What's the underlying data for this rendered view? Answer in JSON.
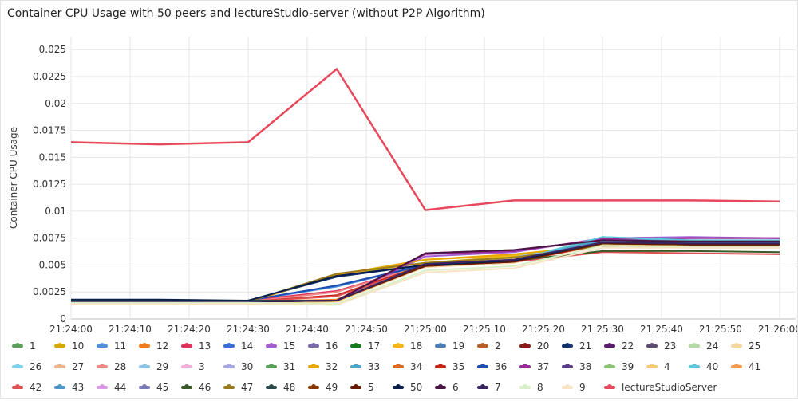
{
  "chart_data": {
    "type": "line",
    "title": "Container CPU Usage with 50 peers and lectureStudio-server (without P2P Algorithm)",
    "ylabel": "Container CPU Usage",
    "xlabel": "",
    "ylim": [
      0,
      0.0262
    ],
    "yticks": [
      "0",
      "0.0025",
      "0.005",
      "0.0075",
      "0.01",
      "0.0125",
      "0.015",
      "0.0175",
      "0.02",
      "0.0225",
      "0.025"
    ],
    "xticks": [
      "21:24:00",
      "21:24:10",
      "21:24:20",
      "21:24:30",
      "21:24:40",
      "21:24:50",
      "21:25:00",
      "21:25:10",
      "21:25:20",
      "21:25:30",
      "21:25:40",
      "21:25:50",
      "21:26:00"
    ],
    "x": [
      "21:24:00",
      "21:24:15",
      "21:24:30",
      "21:24:45",
      "21:25:00",
      "21:25:15",
      "21:25:30",
      "21:25:45",
      "21:26:00"
    ],
    "grid": true,
    "legend_position": "bottom",
    "series": [
      {
        "name": "1",
        "color": "#5aa05a",
        "values": [
          0.0016,
          0.0016,
          0.0016,
          0.0017,
          0.005,
          0.0054,
          0.007,
          0.0069,
          0.0069
        ]
      },
      {
        "name": "10",
        "color": "#d4aa00",
        "values": [
          0.0016,
          0.0016,
          0.0016,
          0.0041,
          0.0052,
          0.0058,
          0.0069,
          0.0068,
          0.0068
        ]
      },
      {
        "name": "11",
        "color": "#4f8fdc",
        "values": [
          0.0017,
          0.0017,
          0.0017,
          0.003,
          0.005,
          0.0054,
          0.0071,
          0.007,
          0.007
        ]
      },
      {
        "name": "12",
        "color": "#f07a1e",
        "values": [
          0.0016,
          0.0016,
          0.0016,
          0.0018,
          0.0052,
          0.0056,
          0.007,
          0.0069,
          0.0069
        ]
      },
      {
        "name": "13",
        "color": "#e0335b",
        "values": [
          0.0017,
          0.0017,
          0.0017,
          0.0026,
          0.005,
          0.0053,
          0.0069,
          0.0068,
          0.0068
        ]
      },
      {
        "name": "14",
        "color": "#3a6fd8",
        "values": [
          0.0017,
          0.0017,
          0.0017,
          0.0031,
          0.005,
          0.0054,
          0.0072,
          0.0071,
          0.0071
        ]
      },
      {
        "name": "15",
        "color": "#a25fd0",
        "values": [
          0.0016,
          0.0016,
          0.0016,
          0.0017,
          0.0058,
          0.0062,
          0.0075,
          0.0076,
          0.0075
        ]
      },
      {
        "name": "16",
        "color": "#7b6aa8",
        "values": [
          0.0016,
          0.0016,
          0.0016,
          0.0017,
          0.0051,
          0.0055,
          0.0071,
          0.007,
          0.007
        ]
      },
      {
        "name": "17",
        "color": "#137a1c",
        "values": [
          0.0016,
          0.0016,
          0.0016,
          0.0017,
          0.005,
          0.0053,
          0.0069,
          0.0068,
          0.0068
        ]
      },
      {
        "name": "18",
        "color": "#f4b817",
        "values": [
          0.0016,
          0.0016,
          0.0016,
          0.004,
          0.0055,
          0.0059,
          0.0068,
          0.0067,
          0.0067
        ]
      },
      {
        "name": "19",
        "color": "#4a7fb5",
        "values": [
          0.0016,
          0.0016,
          0.0016,
          0.0017,
          0.005,
          0.0054,
          0.0071,
          0.007,
          0.007
        ]
      },
      {
        "name": "2",
        "color": "#b5602a",
        "values": [
          0.0016,
          0.0016,
          0.0016,
          0.0017,
          0.0051,
          0.0055,
          0.007,
          0.0069,
          0.0069
        ]
      },
      {
        "name": "20",
        "color": "#8a1a1a",
        "values": [
          0.0016,
          0.0016,
          0.0016,
          0.0017,
          0.0049,
          0.0053,
          0.007,
          0.0069,
          0.0069
        ]
      },
      {
        "name": "21",
        "color": "#10306e",
        "values": [
          0.0017,
          0.0017,
          0.0017,
          0.0039,
          0.005,
          0.0054,
          0.0071,
          0.007,
          0.007
        ]
      },
      {
        "name": "22",
        "color": "#5a1d6e",
        "values": [
          0.0016,
          0.0016,
          0.0016,
          0.0017,
          0.0061,
          0.0064,
          0.0073,
          0.0073,
          0.0072
        ]
      },
      {
        "name": "23",
        "color": "#5e4b6e",
        "values": [
          0.0016,
          0.0016,
          0.0016,
          0.0017,
          0.0051,
          0.0055,
          0.0071,
          0.007,
          0.007
        ]
      },
      {
        "name": "24",
        "color": "#b5d8a4",
        "values": [
          0.0016,
          0.0016,
          0.0016,
          0.0017,
          0.005,
          0.0054,
          0.007,
          0.0069,
          0.0069
        ]
      },
      {
        "name": "25",
        "color": "#f3d7a0",
        "values": [
          0.0015,
          0.0015,
          0.0015,
          0.0016,
          0.0048,
          0.0052,
          0.0069,
          0.0068,
          0.0068
        ]
      },
      {
        "name": "26",
        "color": "#7fd3e6",
        "values": [
          0.0016,
          0.0016,
          0.0016,
          0.0017,
          0.005,
          0.0054,
          0.0076,
          0.0073,
          0.0073
        ]
      },
      {
        "name": "27",
        "color": "#f0b48a",
        "values": [
          0.0016,
          0.0016,
          0.0016,
          0.0017,
          0.005,
          0.0054,
          0.007,
          0.0069,
          0.0069
        ]
      },
      {
        "name": "28",
        "color": "#f08a8a",
        "values": [
          0.0016,
          0.0016,
          0.0016,
          0.0025,
          0.005,
          0.0054,
          0.007,
          0.0069,
          0.0069
        ]
      },
      {
        "name": "29",
        "color": "#8fc3e4",
        "values": [
          0.0016,
          0.0016,
          0.0016,
          0.0017,
          0.0052,
          0.0057,
          0.0073,
          0.0072,
          0.0072
        ]
      },
      {
        "name": "3",
        "color": "#f2b1d8",
        "values": [
          0.0016,
          0.0016,
          0.0016,
          0.0017,
          0.005,
          0.0054,
          0.007,
          0.0069,
          0.0069
        ]
      },
      {
        "name": "30",
        "color": "#a9a6e0",
        "values": [
          0.0016,
          0.0016,
          0.0016,
          0.0017,
          0.0051,
          0.0055,
          0.0071,
          0.007,
          0.007
        ]
      },
      {
        "name": "31",
        "color": "#5aa05a",
        "values": [
          0.0016,
          0.0016,
          0.0016,
          0.0017,
          0.005,
          0.0054,
          0.007,
          0.0069,
          0.0069
        ]
      },
      {
        "name": "32",
        "color": "#e8a800",
        "values": [
          0.0016,
          0.0016,
          0.0016,
          0.0041,
          0.0055,
          0.006,
          0.0068,
          0.0067,
          0.0067
        ]
      },
      {
        "name": "33",
        "color": "#4aa8c8",
        "values": [
          0.0016,
          0.0016,
          0.0016,
          0.0017,
          0.005,
          0.0054,
          0.0074,
          0.0072,
          0.0072
        ]
      },
      {
        "name": "34",
        "color": "#e06a1e",
        "values": [
          0.0016,
          0.0016,
          0.0016,
          0.0017,
          0.0052,
          0.0056,
          0.007,
          0.0069,
          0.0069
        ]
      },
      {
        "name": "35",
        "color": "#c4251a",
        "values": [
          0.0016,
          0.0016,
          0.0016,
          0.0022,
          0.005,
          0.0053,
          0.0069,
          0.0068,
          0.0068
        ]
      },
      {
        "name": "36",
        "color": "#1d4fb0",
        "values": [
          0.0017,
          0.0017,
          0.0017,
          0.0031,
          0.005,
          0.0054,
          0.0071,
          0.007,
          0.007
        ]
      },
      {
        "name": "37",
        "color": "#9b2a9b",
        "values": [
          0.0016,
          0.0016,
          0.0016,
          0.0017,
          0.006,
          0.0063,
          0.0074,
          0.0075,
          0.0075
        ]
      },
      {
        "name": "38",
        "color": "#5a3e8a",
        "values": [
          0.0016,
          0.0016,
          0.0016,
          0.0017,
          0.0051,
          0.0055,
          0.0071,
          0.007,
          0.007
        ]
      },
      {
        "name": "39",
        "color": "#8fc07a",
        "values": [
          0.0016,
          0.0016,
          0.0016,
          0.0017,
          0.005,
          0.0054,
          0.007,
          0.0069,
          0.0069
        ]
      },
      {
        "name": "4",
        "color": "#f3cd73",
        "values": [
          0.0015,
          0.0015,
          0.0015,
          0.0016,
          0.005,
          0.0056,
          0.0069,
          0.0068,
          0.0068
        ]
      },
      {
        "name": "40",
        "color": "#5cc8d8",
        "values": [
          0.0016,
          0.0016,
          0.0016,
          0.0017,
          0.005,
          0.0054,
          0.0076,
          0.0073,
          0.0073
        ]
      },
      {
        "name": "41",
        "color": "#f59a4a",
        "values": [
          0.0016,
          0.0016,
          0.0016,
          0.0017,
          0.005,
          0.0054,
          0.007,
          0.0069,
          0.0069
        ]
      },
      {
        "name": "42",
        "color": "#e05050",
        "values": [
          0.0016,
          0.0016,
          0.0016,
          0.0021,
          0.0049,
          0.0053,
          0.0062,
          0.0061,
          0.006
        ]
      },
      {
        "name": "43",
        "color": "#4a96c8",
        "values": [
          0.0016,
          0.0016,
          0.0016,
          0.0017,
          0.0051,
          0.0055,
          0.0072,
          0.0071,
          0.0071
        ]
      },
      {
        "name": "44",
        "color": "#d89ae6",
        "values": [
          0.0016,
          0.0016,
          0.0016,
          0.0017,
          0.005,
          0.0054,
          0.007,
          0.0069,
          0.0069
        ]
      },
      {
        "name": "45",
        "color": "#7a7ab8",
        "values": [
          0.0016,
          0.0016,
          0.0016,
          0.0017,
          0.0051,
          0.0055,
          0.0071,
          0.007,
          0.007
        ]
      },
      {
        "name": "46",
        "color": "#3a5a2a",
        "values": [
          0.0016,
          0.0016,
          0.0016,
          0.0017,
          0.005,
          0.0054,
          0.0063,
          0.0063,
          0.0062
        ]
      },
      {
        "name": "47",
        "color": "#9a7a1a",
        "values": [
          0.0016,
          0.0016,
          0.0016,
          0.0042,
          0.0052,
          0.0057,
          0.0068,
          0.0067,
          0.0067
        ]
      },
      {
        "name": "48",
        "color": "#2a4a4a",
        "values": [
          0.0017,
          0.0017,
          0.0017,
          0.0017,
          0.005,
          0.0054,
          0.007,
          0.0069,
          0.0069
        ]
      },
      {
        "name": "49",
        "color": "#8a3a00",
        "values": [
          0.0016,
          0.0016,
          0.0016,
          0.0017,
          0.005,
          0.0054,
          0.007,
          0.0069,
          0.0069
        ]
      },
      {
        "name": "5",
        "color": "#6a1a00",
        "values": [
          0.0016,
          0.0016,
          0.0016,
          0.0017,
          0.0049,
          0.0053,
          0.007,
          0.0069,
          0.0069
        ]
      },
      {
        "name": "50",
        "color": "#0a1f4a",
        "values": [
          0.0018,
          0.0018,
          0.0017,
          0.004,
          0.005,
          0.0054,
          0.0071,
          0.007,
          0.007
        ]
      },
      {
        "name": "6",
        "color": "#4a1440",
        "values": [
          0.0016,
          0.0016,
          0.0016,
          0.0017,
          0.0061,
          0.0064,
          0.0073,
          0.0072,
          0.0072
        ]
      },
      {
        "name": "7",
        "color": "#3a2460",
        "values": [
          0.0016,
          0.0016,
          0.0016,
          0.0017,
          0.0051,
          0.0055,
          0.0071,
          0.007,
          0.007
        ]
      },
      {
        "name": "8",
        "color": "#d8f0c8",
        "values": [
          0.0015,
          0.0015,
          0.0015,
          0.0014,
          0.0045,
          0.0049,
          0.0068,
          0.0067,
          0.0067
        ]
      },
      {
        "name": "9",
        "color": "#f8e4c4",
        "values": [
          0.0014,
          0.0014,
          0.0014,
          0.0013,
          0.0043,
          0.0047,
          0.0066,
          0.0066,
          0.0066
        ]
      },
      {
        "name": "lectureStudioServer",
        "color": "#e8485c",
        "values": [
          0.0164,
          0.0162,
          0.0164,
          0.0232,
          0.0101,
          0.011,
          0.011,
          0.011,
          0.0109
        ]
      }
    ]
  }
}
